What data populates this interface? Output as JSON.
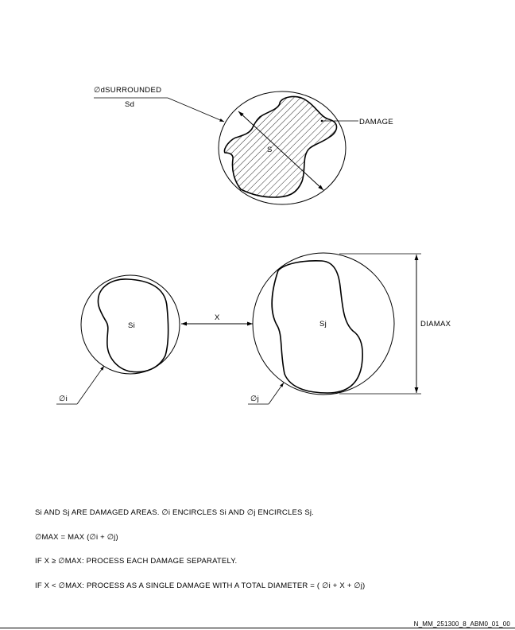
{
  "diagram": {
    "labels": {
      "surrounded_diameter": "∅dSURROUNDED",
      "surrounded_area": "Sd",
      "damage": "DAMAGE",
      "s": "S",
      "si": "Si",
      "sj": "Sj",
      "x": "X",
      "diamax": "DIAMAX",
      "phi_i": "∅i",
      "phi_j": "∅j"
    }
  },
  "notes": [
    "Si AND Sj ARE DAMAGED AREAS. ∅i ENCIRCLES Si AND ∅j ENCIRCLES Sj.",
    "∅MAX = MAX (∅i + ∅j)",
    "IF X ≥ ∅MAX: PROCESS EACH DAMAGE SEPARATELY.",
    "IF X < ∅MAX: PROCESS AS A SINGLE DAMAGE WITH A TOTAL DIAMETER = ( ∅i + X + ∅j)"
  ],
  "figure_id": "N_MM_251300_8_ABM0_01_00"
}
